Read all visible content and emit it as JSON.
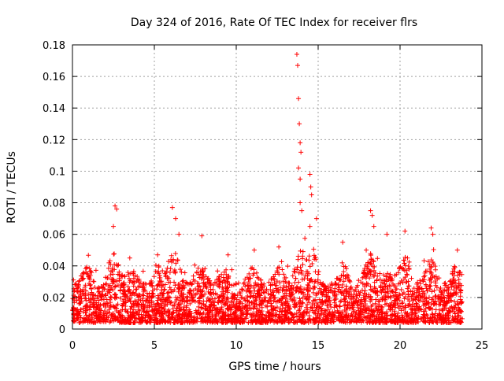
{
  "chart_data": {
    "type": "scatter",
    "title": "Day 324 of 2016, Rate Of TEC Index for receiver flrs",
    "xlabel": "GPS time / hours",
    "ylabel": "ROTI / TECUs",
    "xlim": [
      0,
      25
    ],
    "ylim": [
      0,
      0.18
    ],
    "xticks": [
      "0",
      "5",
      "10",
      "15",
      "20",
      "25"
    ],
    "xtick_values": [
      0,
      5,
      10,
      15,
      20,
      25
    ],
    "yticks": [
      "0",
      "0.02",
      "0.04",
      "0.06",
      "0.08",
      "0.1",
      "0.12",
      "0.14",
      "0.16",
      "0.18"
    ],
    "ytick_values": [
      0,
      0.02,
      0.04,
      0.06,
      0.08,
      0.1,
      0.12,
      0.14,
      0.16,
      0.18
    ],
    "grid": true,
    "marker": "+",
    "marker_color": "#ff0000",
    "x_extent": [
      0,
      23.8
    ],
    "series": [
      {
        "name": "ROTI",
        "notable_points": [
          {
            "x": 0.9,
            "y": 0.035
          },
          {
            "x": 2.5,
            "y": 0.065
          },
          {
            "x": 2.6,
            "y": 0.078
          },
          {
            "x": 2.7,
            "y": 0.076
          },
          {
            "x": 3.5,
            "y": 0.045
          },
          {
            "x": 5.2,
            "y": 0.047
          },
          {
            "x": 6.1,
            "y": 0.077
          },
          {
            "x": 6.3,
            "y": 0.07
          },
          {
            "x": 6.5,
            "y": 0.06
          },
          {
            "x": 7.9,
            "y": 0.059
          },
          {
            "x": 9.5,
            "y": 0.047
          },
          {
            "x": 11.1,
            "y": 0.05
          },
          {
            "x": 12.6,
            "y": 0.052
          },
          {
            "x": 13.7,
            "y": 0.174
          },
          {
            "x": 13.75,
            "y": 0.167
          },
          {
            "x": 13.8,
            "y": 0.146
          },
          {
            "x": 13.85,
            "y": 0.13
          },
          {
            "x": 13.9,
            "y": 0.118
          },
          {
            "x": 13.95,
            "y": 0.112
          },
          {
            "x": 13.8,
            "y": 0.102
          },
          {
            "x": 13.9,
            "y": 0.095
          },
          {
            "x": 13.9,
            "y": 0.08
          },
          {
            "x": 14.0,
            "y": 0.075
          },
          {
            "x": 14.5,
            "y": 0.098
          },
          {
            "x": 14.55,
            "y": 0.09
          },
          {
            "x": 14.6,
            "y": 0.085
          },
          {
            "x": 14.5,
            "y": 0.065
          },
          {
            "x": 14.9,
            "y": 0.07
          },
          {
            "x": 16.5,
            "y": 0.055
          },
          {
            "x": 18.2,
            "y": 0.075
          },
          {
            "x": 18.3,
            "y": 0.072
          },
          {
            "x": 18.4,
            "y": 0.065
          },
          {
            "x": 19.2,
            "y": 0.06
          },
          {
            "x": 20.3,
            "y": 0.062
          },
          {
            "x": 21.9,
            "y": 0.064
          },
          {
            "x": 22.0,
            "y": 0.06
          },
          {
            "x": 23.5,
            "y": 0.05
          }
        ]
      }
    ]
  }
}
